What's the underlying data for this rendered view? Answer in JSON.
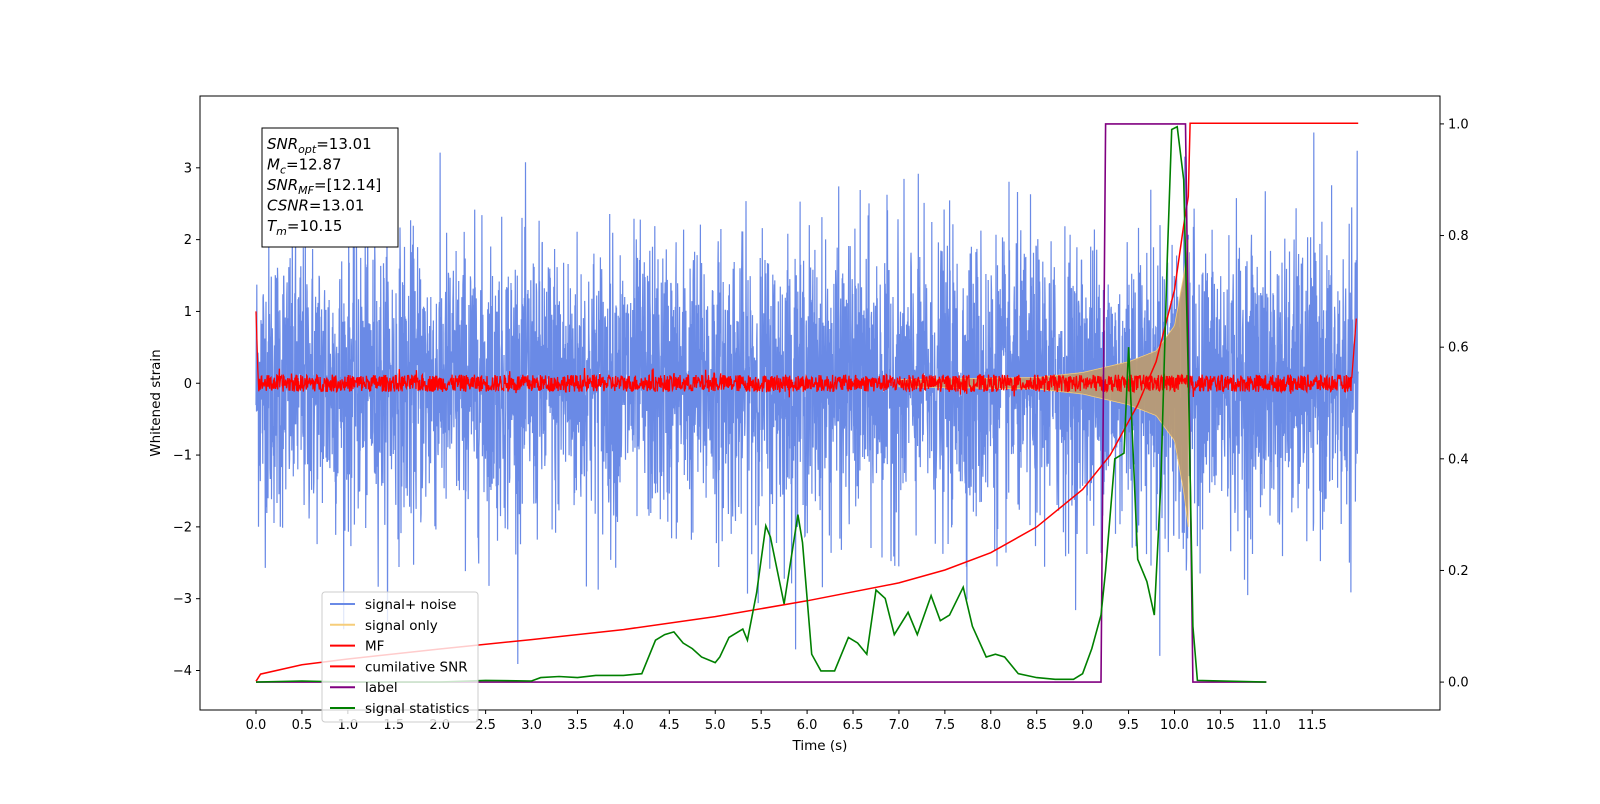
{
  "chart_data": {
    "type": "line",
    "xlabel": "Time (s)",
    "ylabel": "Whitened strain",
    "x_ticks": [
      "0.0",
      "0.5",
      "1.0",
      "1.5",
      "2.0",
      "2.5",
      "3.0",
      "3.5",
      "4.0",
      "4.5",
      "5.0",
      "5.5",
      "6.0",
      "6.5",
      "7.0",
      "7.5",
      "8.0",
      "8.5",
      "9.0",
      "9.5",
      "10.0",
      "10.5",
      "11.0",
      "11.5"
    ],
    "ylim_left": [
      -4.55,
      4.0
    ],
    "yticks_left": [
      "−4",
      "−3",
      "−2",
      "−1",
      "0",
      "1",
      "2",
      "3"
    ],
    "ylim_right": [
      -0.05,
      1.05
    ],
    "yticks_right": [
      "0.0",
      "0.2",
      "0.4",
      "0.6",
      "0.8",
      "1.0"
    ],
    "info_box": [
      {
        "label": "SNR",
        "sub": "opt",
        "value": "=13.01"
      },
      {
        "label": "M",
        "sub": "c",
        "value": "=12.87"
      },
      {
        "label": "SNR",
        "sub": "MF",
        "value": "=[12.14]"
      },
      {
        "label": "CSNR",
        "sub": "",
        "value": "=13.01"
      },
      {
        "label": "T",
        "sub": "m",
        "value": "=10.15"
      }
    ],
    "series": [
      {
        "name": "signal+ noise",
        "color": "#6a8ae6",
        "axis": "left",
        "description_x_range": [
          0.0,
          12.0
        ],
        "typical_amplitude": 1.0,
        "peak_amplitude": 3.6
      },
      {
        "name": "signal only",
        "color": "#f6cd7a",
        "axis": "left",
        "envelope": [
          [
            0.0,
            0.02
          ],
          [
            7.0,
            0.05
          ],
          [
            8.5,
            0.08
          ],
          [
            9.0,
            0.15
          ],
          [
            9.5,
            0.3
          ],
          [
            9.8,
            0.45
          ],
          [
            10.0,
            0.8
          ],
          [
            10.1,
            1.5
          ],
          [
            10.15,
            2.0
          ]
        ]
      },
      {
        "name": "MF",
        "color": "#ff0000",
        "axis": "left",
        "start_value": 1.0,
        "noise_amplitude": 0.12,
        "end_value": 0.9
      },
      {
        "name": "cumilative SNR",
        "color": "#ff0000",
        "axis": "left",
        "points": [
          [
            0.0,
            -4.15
          ],
          [
            0.05,
            -4.05
          ],
          [
            0.5,
            -3.92
          ],
          [
            1.0,
            -3.84
          ],
          [
            2.0,
            -3.7
          ],
          [
            3.0,
            -3.57
          ],
          [
            4.0,
            -3.43
          ],
          [
            5.0,
            -3.25
          ],
          [
            6.0,
            -3.03
          ],
          [
            7.0,
            -2.78
          ],
          [
            7.5,
            -2.6
          ],
          [
            8.0,
            -2.36
          ],
          [
            8.5,
            -2.0
          ],
          [
            9.0,
            -1.48
          ],
          [
            9.3,
            -1.0
          ],
          [
            9.6,
            -0.3
          ],
          [
            9.8,
            0.3
          ],
          [
            10.0,
            1.3
          ],
          [
            10.1,
            2.2
          ],
          [
            10.15,
            2.6
          ],
          [
            10.17,
            3.62
          ],
          [
            12.0,
            3.62
          ]
        ]
      },
      {
        "name": "label",
        "color": "#800080",
        "axis": "right",
        "points": [
          [
            0.0,
            0.0
          ],
          [
            9.2,
            0.0
          ],
          [
            9.25,
            1.0
          ],
          [
            10.12,
            1.0
          ],
          [
            10.2,
            0.0
          ],
          [
            11.0,
            0.0
          ]
        ]
      },
      {
        "name": "signal statistics",
        "color": "#008000",
        "axis": "right",
        "points": [
          [
            0.0,
            0.0
          ],
          [
            0.5,
            0.002
          ],
          [
            1.0,
            0.0
          ],
          [
            2.0,
            0.0
          ],
          [
            2.5,
            0.003
          ],
          [
            3.0,
            0.002
          ],
          [
            3.1,
            0.008
          ],
          [
            3.3,
            0.01
          ],
          [
            3.5,
            0.008
          ],
          [
            3.7,
            0.012
          ],
          [
            4.0,
            0.012
          ],
          [
            4.2,
            0.015
          ],
          [
            4.35,
            0.075
          ],
          [
            4.45,
            0.085
          ],
          [
            4.55,
            0.09
          ],
          [
            4.65,
            0.07
          ],
          [
            4.75,
            0.06
          ],
          [
            4.85,
            0.045
          ],
          [
            5.0,
            0.035
          ],
          [
            5.05,
            0.045
          ],
          [
            5.15,
            0.08
          ],
          [
            5.3,
            0.095
          ],
          [
            5.35,
            0.075
          ],
          [
            5.45,
            0.16
          ],
          [
            5.55,
            0.28
          ],
          [
            5.6,
            0.26
          ],
          [
            5.75,
            0.14
          ],
          [
            5.9,
            0.3
          ],
          [
            5.95,
            0.25
          ],
          [
            6.05,
            0.05
          ],
          [
            6.15,
            0.02
          ],
          [
            6.3,
            0.02
          ],
          [
            6.45,
            0.08
          ],
          [
            6.55,
            0.07
          ],
          [
            6.65,
            0.05
          ],
          [
            6.75,
            0.165
          ],
          [
            6.85,
            0.15
          ],
          [
            6.95,
            0.085
          ],
          [
            7.1,
            0.125
          ],
          [
            7.2,
            0.085
          ],
          [
            7.35,
            0.155
          ],
          [
            7.45,
            0.11
          ],
          [
            7.55,
            0.12
          ],
          [
            7.7,
            0.17
          ],
          [
            7.8,
            0.1
          ],
          [
            7.95,
            0.045
          ],
          [
            8.05,
            0.05
          ],
          [
            8.15,
            0.045
          ],
          [
            8.3,
            0.015
          ],
          [
            8.5,
            0.008
          ],
          [
            8.7,
            0.005
          ],
          [
            8.9,
            0.005
          ],
          [
            9.0,
            0.015
          ],
          [
            9.1,
            0.06
          ],
          [
            9.2,
            0.12
          ],
          [
            9.25,
            0.2
          ],
          [
            9.35,
            0.4
          ],
          [
            9.45,
            0.41
          ],
          [
            9.5,
            0.6
          ],
          [
            9.6,
            0.22
          ],
          [
            9.7,
            0.18
          ],
          [
            9.78,
            0.12
          ],
          [
            9.85,
            0.35
          ],
          [
            9.92,
            0.75
          ],
          [
            9.97,
            0.99
          ],
          [
            10.03,
            0.995
          ],
          [
            10.1,
            0.9
          ],
          [
            10.15,
            0.55
          ],
          [
            10.2,
            0.1
          ],
          [
            10.25,
            0.003
          ],
          [
            11.0,
            0.0
          ]
        ]
      }
    ],
    "legend_placement": "lower-left"
  }
}
